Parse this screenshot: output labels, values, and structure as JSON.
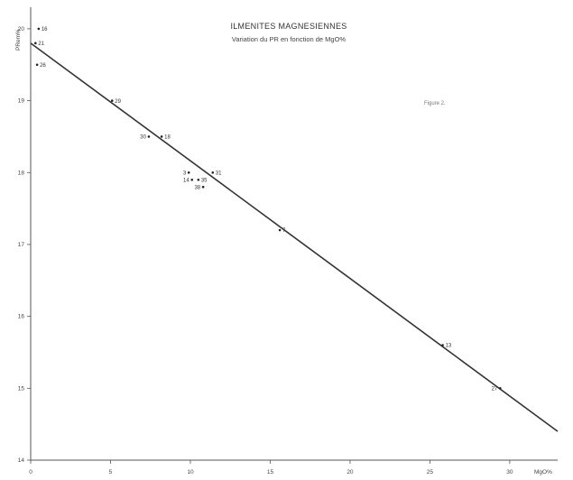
{
  "chart_data": {
    "type": "scatter",
    "title": "ILMENITES MAGNESIENNES",
    "subtitle": "Variation du PR en fonction de MgO%",
    "annotation": "Figure 2.",
    "xlabel": "MgO%",
    "ylabel": "PRem%",
    "xlim": [
      0,
      33
    ],
    "ylim": [
      14,
      20.3
    ],
    "x_ticks": [
      0,
      5,
      10,
      15,
      20,
      25,
      30
    ],
    "y_ticks": [
      14,
      15,
      16,
      17,
      18,
      19,
      20
    ],
    "x_tick_labels": [
      "0",
      "5",
      "10",
      "15",
      "20",
      "25",
      "30"
    ],
    "y_tick_labels": [
      "14",
      "15",
      "16",
      "17",
      "18",
      "19",
      "20"
    ],
    "grid": false,
    "points": [
      {
        "label": "16",
        "x": 0.5,
        "y": 20.0
      },
      {
        "label": "21",
        "x": 0.3,
        "y": 19.8
      },
      {
        "label": "26",
        "x": 0.4,
        "y": 19.5
      },
      {
        "label": "29",
        "x": 5.1,
        "y": 19.0
      },
      {
        "label": "30",
        "x": 7.4,
        "y": 18.5
      },
      {
        "label": "18",
        "x": 8.2,
        "y": 18.5
      },
      {
        "label": "3",
        "x": 9.9,
        "y": 18.0
      },
      {
        "label": "14",
        "x": 10.1,
        "y": 17.9
      },
      {
        "label": "35",
        "x": 10.5,
        "y": 17.9
      },
      {
        "label": "31",
        "x": 11.4,
        "y": 18.0
      },
      {
        "label": "38",
        "x": 10.8,
        "y": 17.8
      },
      {
        "label": "7",
        "x": 15.6,
        "y": 17.2
      },
      {
        "label": "13",
        "x": 25.8,
        "y": 15.6
      },
      {
        "label": "27",
        "x": 29.4,
        "y": 15.0
      }
    ],
    "fit_line": {
      "x": [
        0,
        33
      ],
      "y": [
        19.8,
        14.4
      ]
    }
  }
}
